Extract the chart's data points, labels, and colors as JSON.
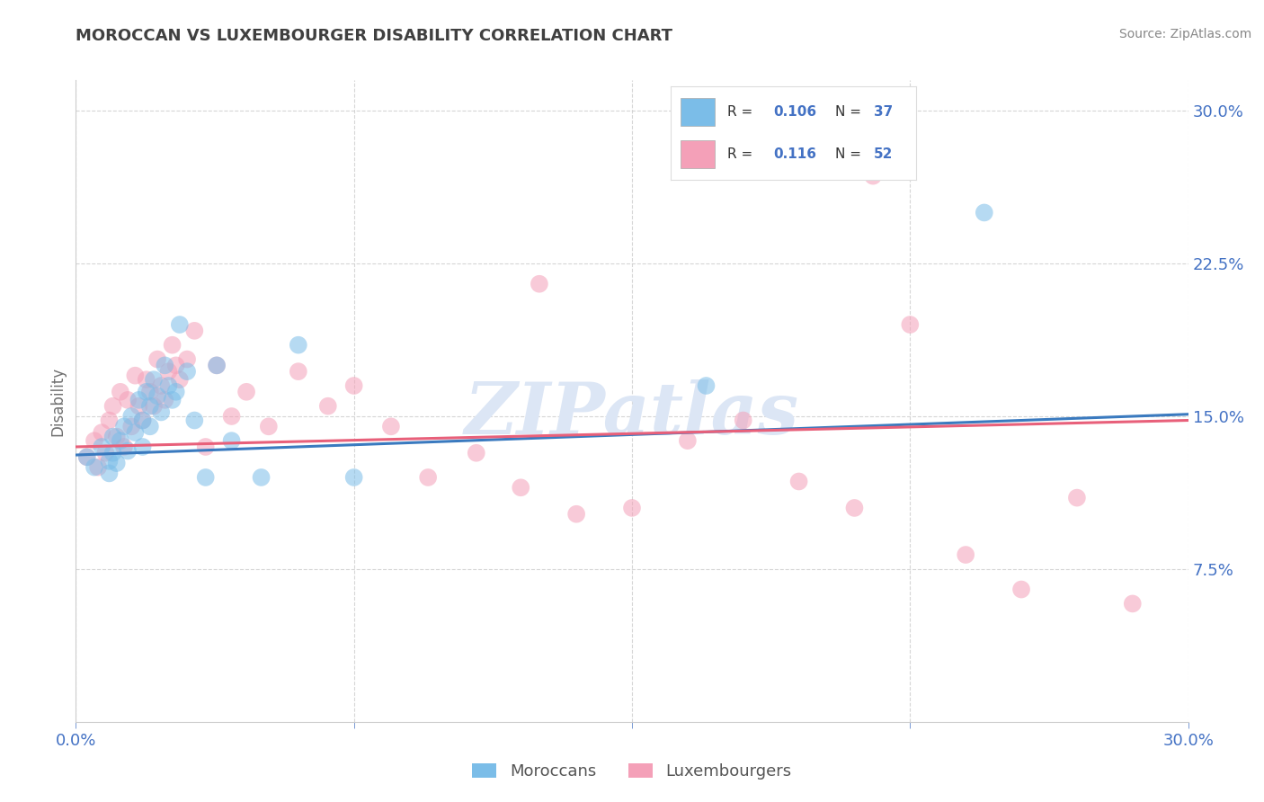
{
  "title": "MOROCCAN VS LUXEMBOURGER DISABILITY CORRELATION CHART",
  "source": "Source: ZipAtlas.com",
  "ylabel": "Disability",
  "xlim": [
    0.0,
    0.3
  ],
  "ylim": [
    0.0,
    0.315
  ],
  "blue_color": "#7bbde8",
  "pink_color": "#f4a0b8",
  "blue_line_color": "#3a7abf",
  "pink_line_color": "#e8607a",
  "tick_label_color": "#4472c4",
  "watermark": "ZIPatlas",
  "watermark_color": "#dce6f5",
  "title_color": "#404040",
  "axis_label_color": "#707070",
  "grid_color": "#cccccc",
  "background_color": "#ffffff",
  "legend_label1": "Moroccans",
  "legend_label2": "Luxembourgers",
  "blue_scatter_x": [
    0.003,
    0.005,
    0.007,
    0.009,
    0.009,
    0.01,
    0.01,
    0.011,
    0.012,
    0.013,
    0.014,
    0.015,
    0.016,
    0.017,
    0.018,
    0.018,
    0.019,
    0.02,
    0.02,
    0.021,
    0.022,
    0.023,
    0.024,
    0.025,
    0.026,
    0.027,
    0.028,
    0.03,
    0.032,
    0.035,
    0.038,
    0.042,
    0.05,
    0.06,
    0.075,
    0.17,
    0.245
  ],
  "blue_scatter_y": [
    0.13,
    0.125,
    0.135,
    0.128,
    0.122,
    0.14,
    0.132,
    0.127,
    0.138,
    0.145,
    0.133,
    0.15,
    0.142,
    0.158,
    0.135,
    0.148,
    0.162,
    0.145,
    0.155,
    0.168,
    0.16,
    0.152,
    0.175,
    0.165,
    0.158,
    0.162,
    0.195,
    0.172,
    0.148,
    0.12,
    0.175,
    0.138,
    0.12,
    0.185,
    0.12,
    0.165,
    0.25
  ],
  "pink_scatter_x": [
    0.003,
    0.005,
    0.006,
    0.007,
    0.008,
    0.009,
    0.01,
    0.011,
    0.012,
    0.013,
    0.014,
    0.015,
    0.016,
    0.017,
    0.018,
    0.019,
    0.02,
    0.021,
    0.022,
    0.023,
    0.024,
    0.025,
    0.026,
    0.027,
    0.028,
    0.03,
    0.032,
    0.035,
    0.038,
    0.042,
    0.046,
    0.052,
    0.06,
    0.068,
    0.075,
    0.085,
    0.095,
    0.108,
    0.12,
    0.135,
    0.15,
    0.165,
    0.18,
    0.195,
    0.21,
    0.225,
    0.24,
    0.255,
    0.27,
    0.285,
    0.125,
    0.215
  ],
  "pink_scatter_y": [
    0.13,
    0.138,
    0.125,
    0.142,
    0.132,
    0.148,
    0.155,
    0.14,
    0.162,
    0.135,
    0.158,
    0.145,
    0.17,
    0.155,
    0.148,
    0.168,
    0.162,
    0.155,
    0.178,
    0.165,
    0.158,
    0.172,
    0.185,
    0.175,
    0.168,
    0.178,
    0.192,
    0.135,
    0.175,
    0.15,
    0.162,
    0.145,
    0.172,
    0.155,
    0.165,
    0.145,
    0.12,
    0.132,
    0.115,
    0.102,
    0.105,
    0.138,
    0.148,
    0.118,
    0.105,
    0.195,
    0.082,
    0.065,
    0.11,
    0.058,
    0.215,
    0.268
  ],
  "blue_line_x": [
    0.0,
    0.3
  ],
  "blue_line_y": [
    0.131,
    0.151
  ],
  "pink_line_x": [
    0.0,
    0.3
  ],
  "pink_line_y": [
    0.135,
    0.148
  ]
}
